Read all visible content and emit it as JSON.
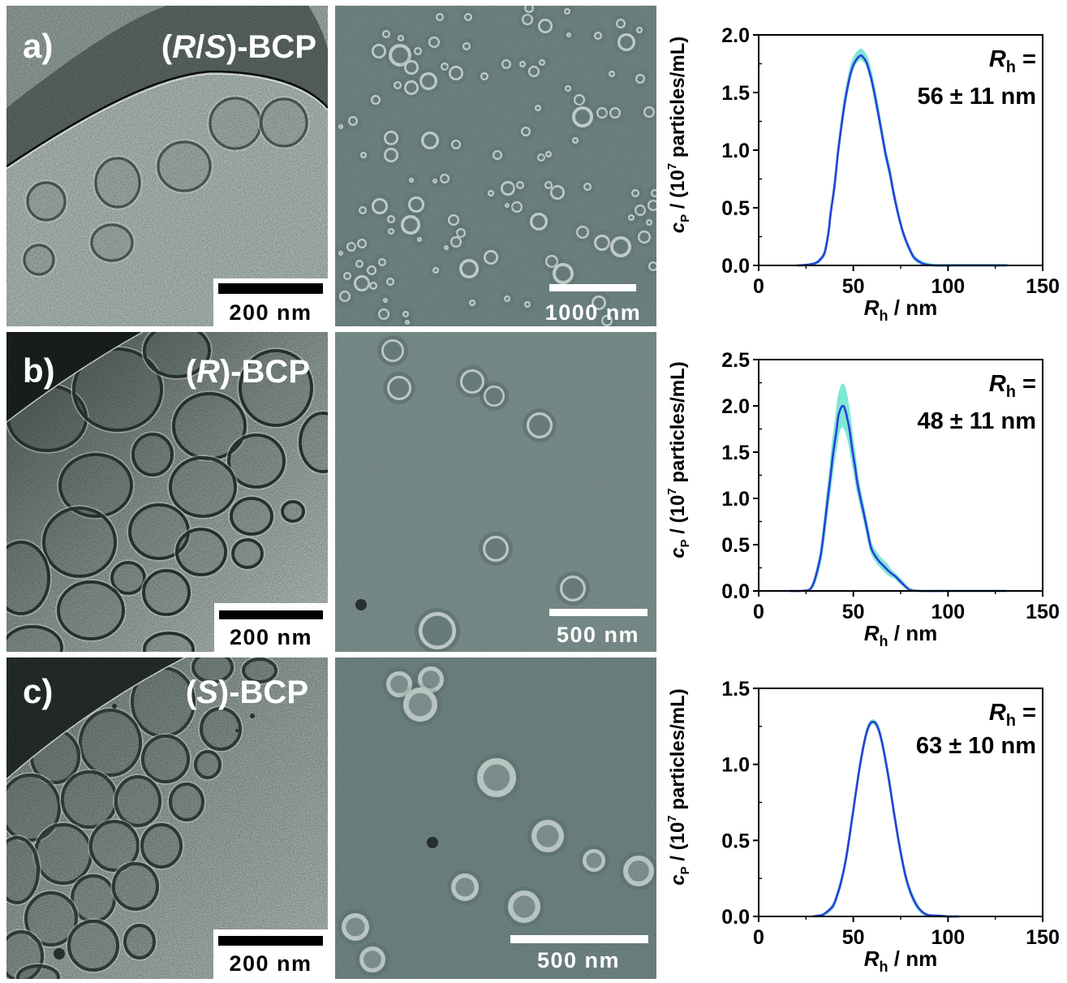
{
  "figure": {
    "rows": [
      {
        "panel_label": "a)",
        "sample_label": {
          "text": "(R/S)-BCP",
          "segments": [
            {
              "text": "(",
              "italic": false
            },
            {
              "text": "R",
              "italic": true
            },
            {
              "text": "/",
              "italic": false
            },
            {
              "text": "S",
              "italic": true
            },
            {
              "text": ")-BCP",
              "italic": false
            }
          ]
        },
        "cryo_tem": {
          "scale_bar": "200 nm"
        },
        "sem": {
          "scale_bar": "1000 nm"
        }
      },
      {
        "panel_label": "b)",
        "sample_label": {
          "text": "(R)-BCP",
          "segments": [
            {
              "text": "(",
              "italic": false
            },
            {
              "text": "R",
              "italic": true
            },
            {
              "text": ")-BCP",
              "italic": false
            }
          ]
        },
        "cryo_tem": {
          "scale_bar": "200 nm"
        },
        "sem": {
          "scale_bar": "500 nm"
        }
      },
      {
        "panel_label": "c)",
        "sample_label": {
          "text": "(S)-BCP",
          "segments": [
            {
              "text": "(",
              "italic": false
            },
            {
              "text": "S",
              "italic": true
            },
            {
              "text": ")-BCP",
              "italic": false
            }
          ]
        },
        "cryo_tem": {
          "scale_bar": "200 nm"
        },
        "sem": {
          "scale_bar": "500 nm"
        }
      }
    ]
  },
  "chart_data": [
    {
      "type": "line",
      "title": "",
      "xlabel": "R_h / nm",
      "ylabel": "c_P / (10^7 particles/mL)",
      "xlabel_parts": {
        "symbol": "R",
        "subscript": "h",
        "rest": " / nm"
      },
      "ylabel_parts": {
        "symbol": "c",
        "subscript": "P",
        "pre": " / (10",
        "superscript": "7",
        "post": " particles/mL)"
      },
      "xlim": [
        0,
        150
      ],
      "ylim": [
        0,
        2.0
      ],
      "xticks": [
        "0",
        "50",
        "100",
        "150"
      ],
      "yticks": [
        "0.0",
        "0.5",
        "1.0",
        "1.5",
        "2.0"
      ],
      "grid": false,
      "legend": null,
      "annotation": {
        "symbol": "R",
        "subscript": "h",
        "equals": " =",
        "value": "56 ± 11 nm"
      },
      "colors": {
        "line": "#2b3fd9",
        "band": "#7ee8d6"
      },
      "x": [
        20,
        25,
        30,
        33,
        35,
        37,
        38,
        40,
        42,
        45,
        47,
        49,
        51,
        53.6,
        55,
        57,
        59,
        60.7,
        63,
        65,
        67,
        69.3,
        71,
        73.6,
        76,
        77.9,
        80,
        82,
        85,
        88,
        93,
        102,
        116,
        125,
        131
      ],
      "series": [
        {
          "name": "mean",
          "values": [
            0,
            0.005,
            0.02,
            0.06,
            0.12,
            0.3,
            0.45,
            0.68,
            0.99,
            1.36,
            1.55,
            1.69,
            1.77,
            1.82,
            1.81,
            1.76,
            1.65,
            1.53,
            1.33,
            1.15,
            0.97,
            0.8,
            0.65,
            0.45,
            0.3,
            0.21,
            0.13,
            0.07,
            0.03,
            0.01,
            0,
            0,
            0,
            0,
            0
          ]
        },
        {
          "name": "band_upper",
          "values": [
            0,
            0.005,
            0.025,
            0.07,
            0.13,
            0.31,
            0.47,
            0.7,
            1.02,
            1.4,
            1.59,
            1.74,
            1.82,
            1.87,
            1.86,
            1.81,
            1.7,
            1.57,
            1.37,
            1.18,
            1.0,
            0.83,
            0.67,
            0.47,
            0.31,
            0.22,
            0.14,
            0.08,
            0.04,
            0.02,
            0.005,
            0.005,
            0.005,
            0.005,
            0.005
          ]
        },
        {
          "name": "band_lower",
          "values": [
            0,
            0,
            0.015,
            0.05,
            0.11,
            0.29,
            0.44,
            0.67,
            0.98,
            1.34,
            1.53,
            1.67,
            1.75,
            1.79,
            1.78,
            1.74,
            1.63,
            1.51,
            1.31,
            1.13,
            0.95,
            0.78,
            0.63,
            0.44,
            0.29,
            0.2,
            0.12,
            0.06,
            0.02,
            0.005,
            0,
            0,
            0,
            0,
            0
          ]
        }
      ]
    },
    {
      "type": "line",
      "title": "",
      "xlabel": "R_h / nm",
      "ylabel": "c_P / (10^7 particles/mL)",
      "xlabel_parts": {
        "symbol": "R",
        "subscript": "h",
        "rest": " / nm"
      },
      "ylabel_parts": {
        "symbol": "c",
        "subscript": "P",
        "pre": " / (10",
        "superscript": "7",
        "post": " particles/mL)"
      },
      "xlim": [
        0,
        150
      ],
      "ylim": [
        0,
        2.5
      ],
      "xticks": [
        "0",
        "50",
        "100",
        "150"
      ],
      "yticks": [
        "0.0",
        "0.5",
        "1.0",
        "1.5",
        "2.0",
        "2.5"
      ],
      "grid": false,
      "legend": null,
      "annotation": {
        "symbol": "R",
        "subscript": "h",
        "equals": " =",
        "value": "48 ± 11 nm"
      },
      "colors": {
        "line": "#2b3fd9",
        "band": "#7ee8d6"
      },
      "x": [
        16.4,
        22,
        26.4,
        28,
        29.3,
        31,
        32.9,
        34.5,
        36.4,
        38,
        39.3,
        41,
        42.1,
        43.3,
        44.3,
        45.3,
        46.4,
        48,
        49.3,
        51,
        52.1,
        54,
        55.7,
        57.5,
        59.3,
        61.5,
        63.6,
        66,
        67.9,
        70,
        72.1,
        74,
        76.4,
        78,
        80,
        85,
        102,
        124,
        131
      ],
      "series": [
        {
          "name": "mean",
          "values": [
            0,
            0,
            0.01,
            0.04,
            0.1,
            0.22,
            0.4,
            0.65,
            0.98,
            1.25,
            1.48,
            1.72,
            1.89,
            1.97,
            2.0,
            1.98,
            1.9,
            1.74,
            1.55,
            1.33,
            1.17,
            0.98,
            0.82,
            0.64,
            0.47,
            0.38,
            0.32,
            0.27,
            0.23,
            0.19,
            0.16,
            0.12,
            0.07,
            0.04,
            0.01,
            0,
            0,
            0,
            0
          ]
        },
        {
          "name": "band_upper",
          "values": [
            0,
            0,
            0.01,
            0.05,
            0.12,
            0.25,
            0.44,
            0.71,
            1.06,
            1.36,
            1.62,
            1.89,
            2.08,
            2.18,
            2.23,
            2.2,
            2.1,
            1.9,
            1.68,
            1.43,
            1.25,
            1.04,
            0.87,
            0.69,
            0.52,
            0.43,
            0.37,
            0.32,
            0.28,
            0.22,
            0.18,
            0.14,
            0.09,
            0.05,
            0.02,
            0,
            0,
            0,
            0
          ]
        },
        {
          "name": "band_lower",
          "values": [
            0,
            0,
            0.01,
            0.03,
            0.08,
            0.19,
            0.36,
            0.59,
            0.9,
            1.14,
            1.35,
            1.56,
            1.7,
            1.77,
            1.78,
            1.76,
            1.71,
            1.58,
            1.42,
            1.23,
            1.09,
            0.92,
            0.77,
            0.6,
            0.43,
            0.34,
            0.28,
            0.23,
            0.19,
            0.16,
            0.14,
            0.1,
            0.06,
            0.03,
            0.01,
            0,
            0,
            0,
            0
          ]
        }
      ]
    },
    {
      "type": "line",
      "title": "",
      "xlabel": "R_h / nm",
      "ylabel": "c_P / (10^7 particles/mL)",
      "xlabel_parts": {
        "symbol": "R",
        "subscript": "h",
        "rest": " / nm"
      },
      "ylabel_parts": {
        "symbol": "c",
        "subscript": "P",
        "pre": " / (10",
        "superscript": "7",
        "post": " particles/mL)"
      },
      "xlim": [
        0,
        150
      ],
      "ylim": [
        0,
        1.5
      ],
      "xticks": [
        "0",
        "50",
        "100",
        "150"
      ],
      "yticks": [
        "0.0",
        "0.5",
        "1.0",
        "1.5"
      ],
      "grid": false,
      "legend": null,
      "annotation": {
        "symbol": "R",
        "subscript": "h",
        "equals": " =",
        "value": "63 ± 10 nm"
      },
      "colors": {
        "line": "#2b3fd9",
        "band": "#7ee8d6"
      },
      "x": [
        28.6,
        31,
        33.6,
        36,
        39.3,
        41.5,
        43.6,
        46,
        47.9,
        50,
        52.1,
        54.3,
        56.4,
        58.5,
        60.4,
        62.3,
        64.3,
        66.5,
        69.3,
        71.5,
        73.6,
        75.8,
        77.9,
        80.5,
        83.6,
        86.5,
        89.3,
        95,
        100,
        106
      ],
      "series": [
        {
          "name": "mean",
          "values": [
            0,
            0.005,
            0.01,
            0.03,
            0.07,
            0.14,
            0.23,
            0.37,
            0.52,
            0.7,
            0.88,
            1.05,
            1.18,
            1.26,
            1.28,
            1.26,
            1.19,
            1.06,
            0.86,
            0.68,
            0.52,
            0.37,
            0.25,
            0.15,
            0.07,
            0.03,
            0.01,
            0.005,
            0,
            0
          ]
        },
        {
          "name": "band_upper",
          "values": [
            0,
            0.005,
            0.01,
            0.03,
            0.08,
            0.15,
            0.24,
            0.38,
            0.53,
            0.71,
            0.89,
            1.06,
            1.19,
            1.27,
            1.29,
            1.27,
            1.2,
            1.07,
            0.87,
            0.69,
            0.53,
            0.38,
            0.26,
            0.16,
            0.08,
            0.03,
            0.01,
            0.005,
            0,
            0
          ]
        },
        {
          "name": "band_lower",
          "values": [
            0,
            0,
            0.01,
            0.02,
            0.06,
            0.13,
            0.22,
            0.36,
            0.51,
            0.69,
            0.87,
            1.04,
            1.17,
            1.25,
            1.27,
            1.25,
            1.18,
            1.05,
            0.85,
            0.67,
            0.51,
            0.36,
            0.24,
            0.14,
            0.06,
            0.02,
            0.005,
            0,
            0,
            0
          ]
        }
      ]
    }
  ]
}
